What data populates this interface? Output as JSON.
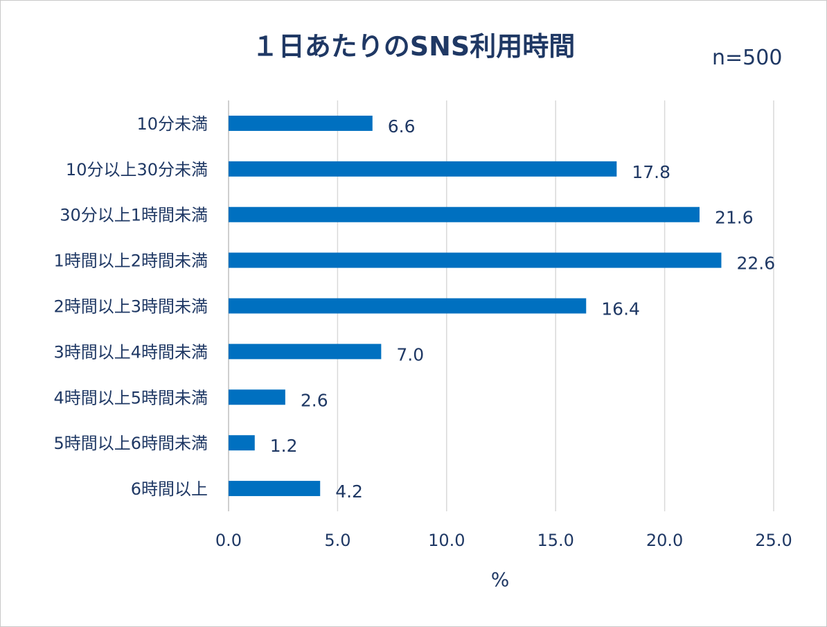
{
  "chart_data": {
    "type": "bar",
    "orientation": "horizontal",
    "title": "１日あたりのSNS利用時間",
    "annotation": "n=500",
    "xlabel": "%",
    "ylabel": "",
    "xlim": [
      0,
      25
    ],
    "x_ticks": [
      "0.0",
      "5.0",
      "10.0",
      "15.0",
      "20.0",
      "25.0"
    ],
    "x_tick_values": [
      0,
      5,
      10,
      15,
      20,
      25
    ],
    "grid": true,
    "legend": "none",
    "bar_color": "#0070c0",
    "categories": [
      "10分未満",
      "10分以上30分未満",
      "30分以上1時間未満",
      "1時間以上2時間未満",
      "2時間以上3時間未満",
      "3時間以上4時間未満",
      "4時間以上5時間未満",
      "5時間以上6時間未満",
      "6時間以上"
    ],
    "values": [
      6.6,
      17.8,
      21.6,
      22.6,
      16.4,
      7.0,
      2.6,
      1.2,
      4.2
    ],
    "value_labels": [
      "6.6",
      "17.8",
      "21.6",
      "22.6",
      "16.4",
      "7.0",
      "2.6",
      "1.2",
      "4.2"
    ]
  }
}
